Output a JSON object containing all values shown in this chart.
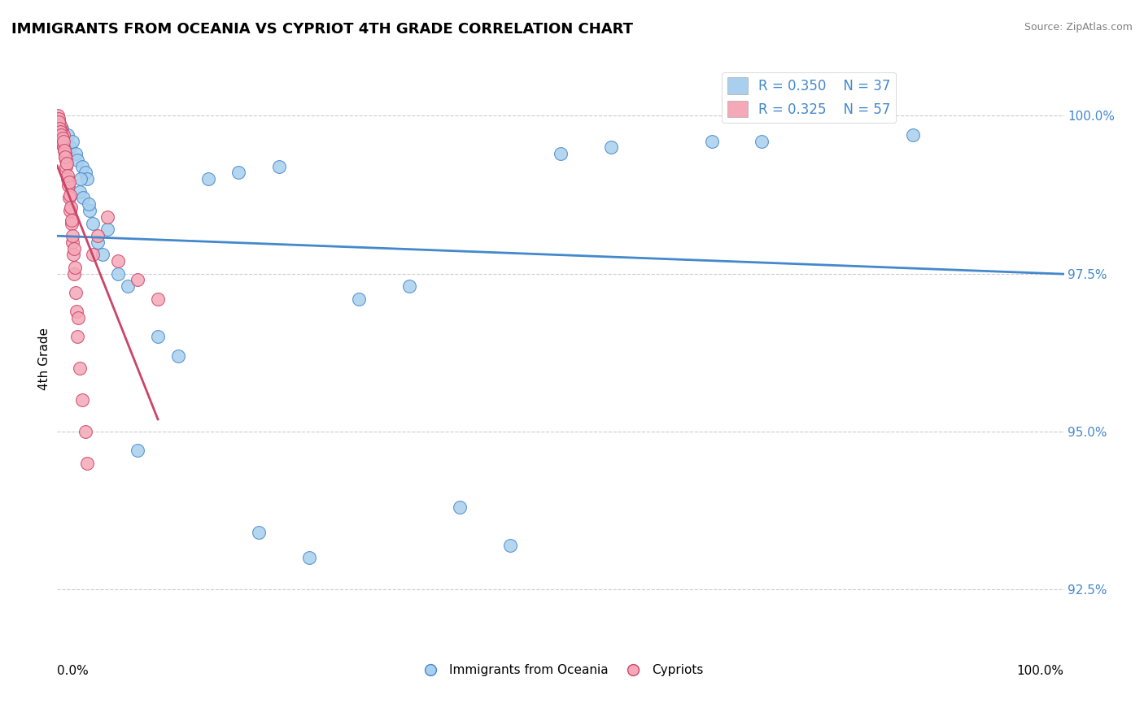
{
  "title": "IMMIGRANTS FROM OCEANIA VS CYPRIOT 4TH GRADE CORRELATION CHART",
  "source": "Source: ZipAtlas.com",
  "ylabel": "4th Grade",
  "legend_blue_R": "R = 0.350",
  "legend_blue_N": "N = 37",
  "legend_pink_R": "R = 0.325",
  "legend_pink_N": "N = 57",
  "legend_label_blue": "Immigrants from Oceania",
  "legend_label_pink": "Cypriots",
  "blue_color": "#A8CFED",
  "pink_color": "#F4A8B8",
  "trendline_blue_color": "#4488CC",
  "trendline_pink_color": "#CC4466",
  "blue_scatter_x": [
    0.5,
    1.0,
    1.3,
    1.5,
    1.8,
    2.0,
    2.2,
    2.5,
    2.8,
    3.0,
    3.2,
    3.5,
    4.0,
    4.5,
    5.0,
    7.0,
    8.0,
    10.0,
    12.0,
    15.0,
    18.0,
    20.0,
    25.0,
    30.0,
    35.0,
    45.0,
    55.0,
    70.0,
    85.0,
    2.3,
    2.6,
    3.1,
    6.0,
    22.0,
    40.0,
    50.0,
    65.0
  ],
  "blue_scatter_y": [
    99.8,
    99.7,
    99.5,
    99.6,
    99.4,
    99.3,
    98.8,
    99.2,
    99.1,
    99.0,
    98.5,
    98.3,
    98.0,
    97.8,
    98.2,
    97.3,
    94.7,
    96.5,
    96.2,
    99.0,
    99.1,
    93.4,
    93.0,
    97.1,
    97.3,
    93.2,
    99.5,
    99.6,
    99.7,
    99.0,
    98.7,
    98.6,
    97.5,
    99.2,
    93.8,
    99.4,
    99.6
  ],
  "pink_scatter_x": [
    0.05,
    0.1,
    0.15,
    0.2,
    0.25,
    0.3,
    0.35,
    0.4,
    0.45,
    0.5,
    0.55,
    0.6,
    0.65,
    0.7,
    0.75,
    0.8,
    0.85,
    0.9,
    1.0,
    1.1,
    1.2,
    1.3,
    1.4,
    1.5,
    1.6,
    1.7,
    1.8,
    1.9,
    2.0,
    2.2,
    2.5,
    2.8,
    3.0,
    3.5,
    4.0,
    5.0,
    6.0,
    8.0,
    10.0,
    0.12,
    0.22,
    0.32,
    0.42,
    0.52,
    0.62,
    0.72,
    0.82,
    0.92,
    1.05,
    1.15,
    1.25,
    1.35,
    1.45,
    1.55,
    1.65,
    1.75,
    2.1
  ],
  "pink_scatter_y": [
    100.0,
    99.9,
    99.95,
    99.8,
    99.75,
    99.85,
    99.7,
    99.65,
    99.75,
    99.6,
    99.55,
    99.7,
    99.5,
    99.45,
    99.4,
    99.35,
    99.3,
    99.2,
    99.0,
    98.9,
    98.7,
    98.5,
    98.3,
    98.0,
    97.8,
    97.5,
    97.2,
    96.9,
    96.5,
    96.0,
    95.5,
    95.0,
    94.5,
    97.8,
    98.1,
    98.4,
    97.7,
    97.4,
    97.1,
    99.9,
    99.8,
    99.75,
    99.7,
    99.65,
    99.6,
    99.45,
    99.35,
    99.25,
    99.05,
    98.95,
    98.75,
    98.55,
    98.35,
    98.1,
    97.9,
    97.6,
    96.8
  ],
  "xlim": [
    0.0,
    100.0
  ],
  "ylim": [
    91.5,
    100.8
  ],
  "yticks": [
    92.5,
    95.0,
    97.5,
    100.0
  ],
  "ytick_labels": [
    "92.5%",
    "95.0%",
    "97.5%",
    "100.0%"
  ]
}
